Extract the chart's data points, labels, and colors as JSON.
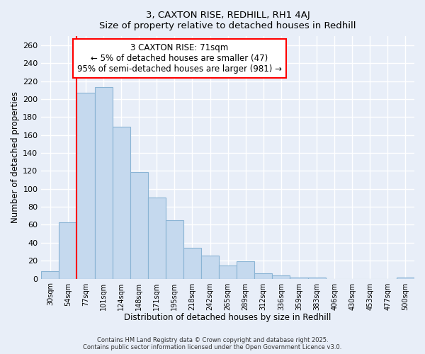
{
  "title1": "3, CAXTON RISE, REDHILL, RH1 4AJ",
  "title2": "Size of property relative to detached houses in Redhill",
  "xlabel": "Distribution of detached houses by size in Redhill",
  "ylabel": "Number of detached properties",
  "bar_color": "#c5d9ee",
  "bar_edge_color": "#8ab4d4",
  "background_color": "#e8eef8",
  "grid_color": "#ffffff",
  "categories": [
    "30sqm",
    "54sqm",
    "77sqm",
    "101sqm",
    "124sqm",
    "148sqm",
    "171sqm",
    "195sqm",
    "218sqm",
    "242sqm",
    "265sqm",
    "289sqm",
    "312sqm",
    "336sqm",
    "359sqm",
    "383sqm",
    "406sqm",
    "430sqm",
    "453sqm",
    "477sqm",
    "500sqm"
  ],
  "values": [
    8,
    63,
    207,
    213,
    169,
    119,
    90,
    65,
    34,
    26,
    15,
    19,
    6,
    4,
    1,
    1,
    0,
    0,
    0,
    0,
    1
  ],
  "ylim": [
    0,
    270
  ],
  "yticks": [
    0,
    20,
    40,
    60,
    80,
    100,
    120,
    140,
    160,
    180,
    200,
    220,
    240,
    260
  ],
  "annotation_title": "3 CAXTON RISE: 71sqm",
  "annotation_line1": "← 5% of detached houses are smaller (47)",
  "annotation_line2": "95% of semi-detached houses are larger (981) →",
  "red_line_index": 2,
  "footer1": "Contains HM Land Registry data © Crown copyright and database right 2025.",
  "footer2": "Contains public sector information licensed under the Open Government Licence v3.0."
}
